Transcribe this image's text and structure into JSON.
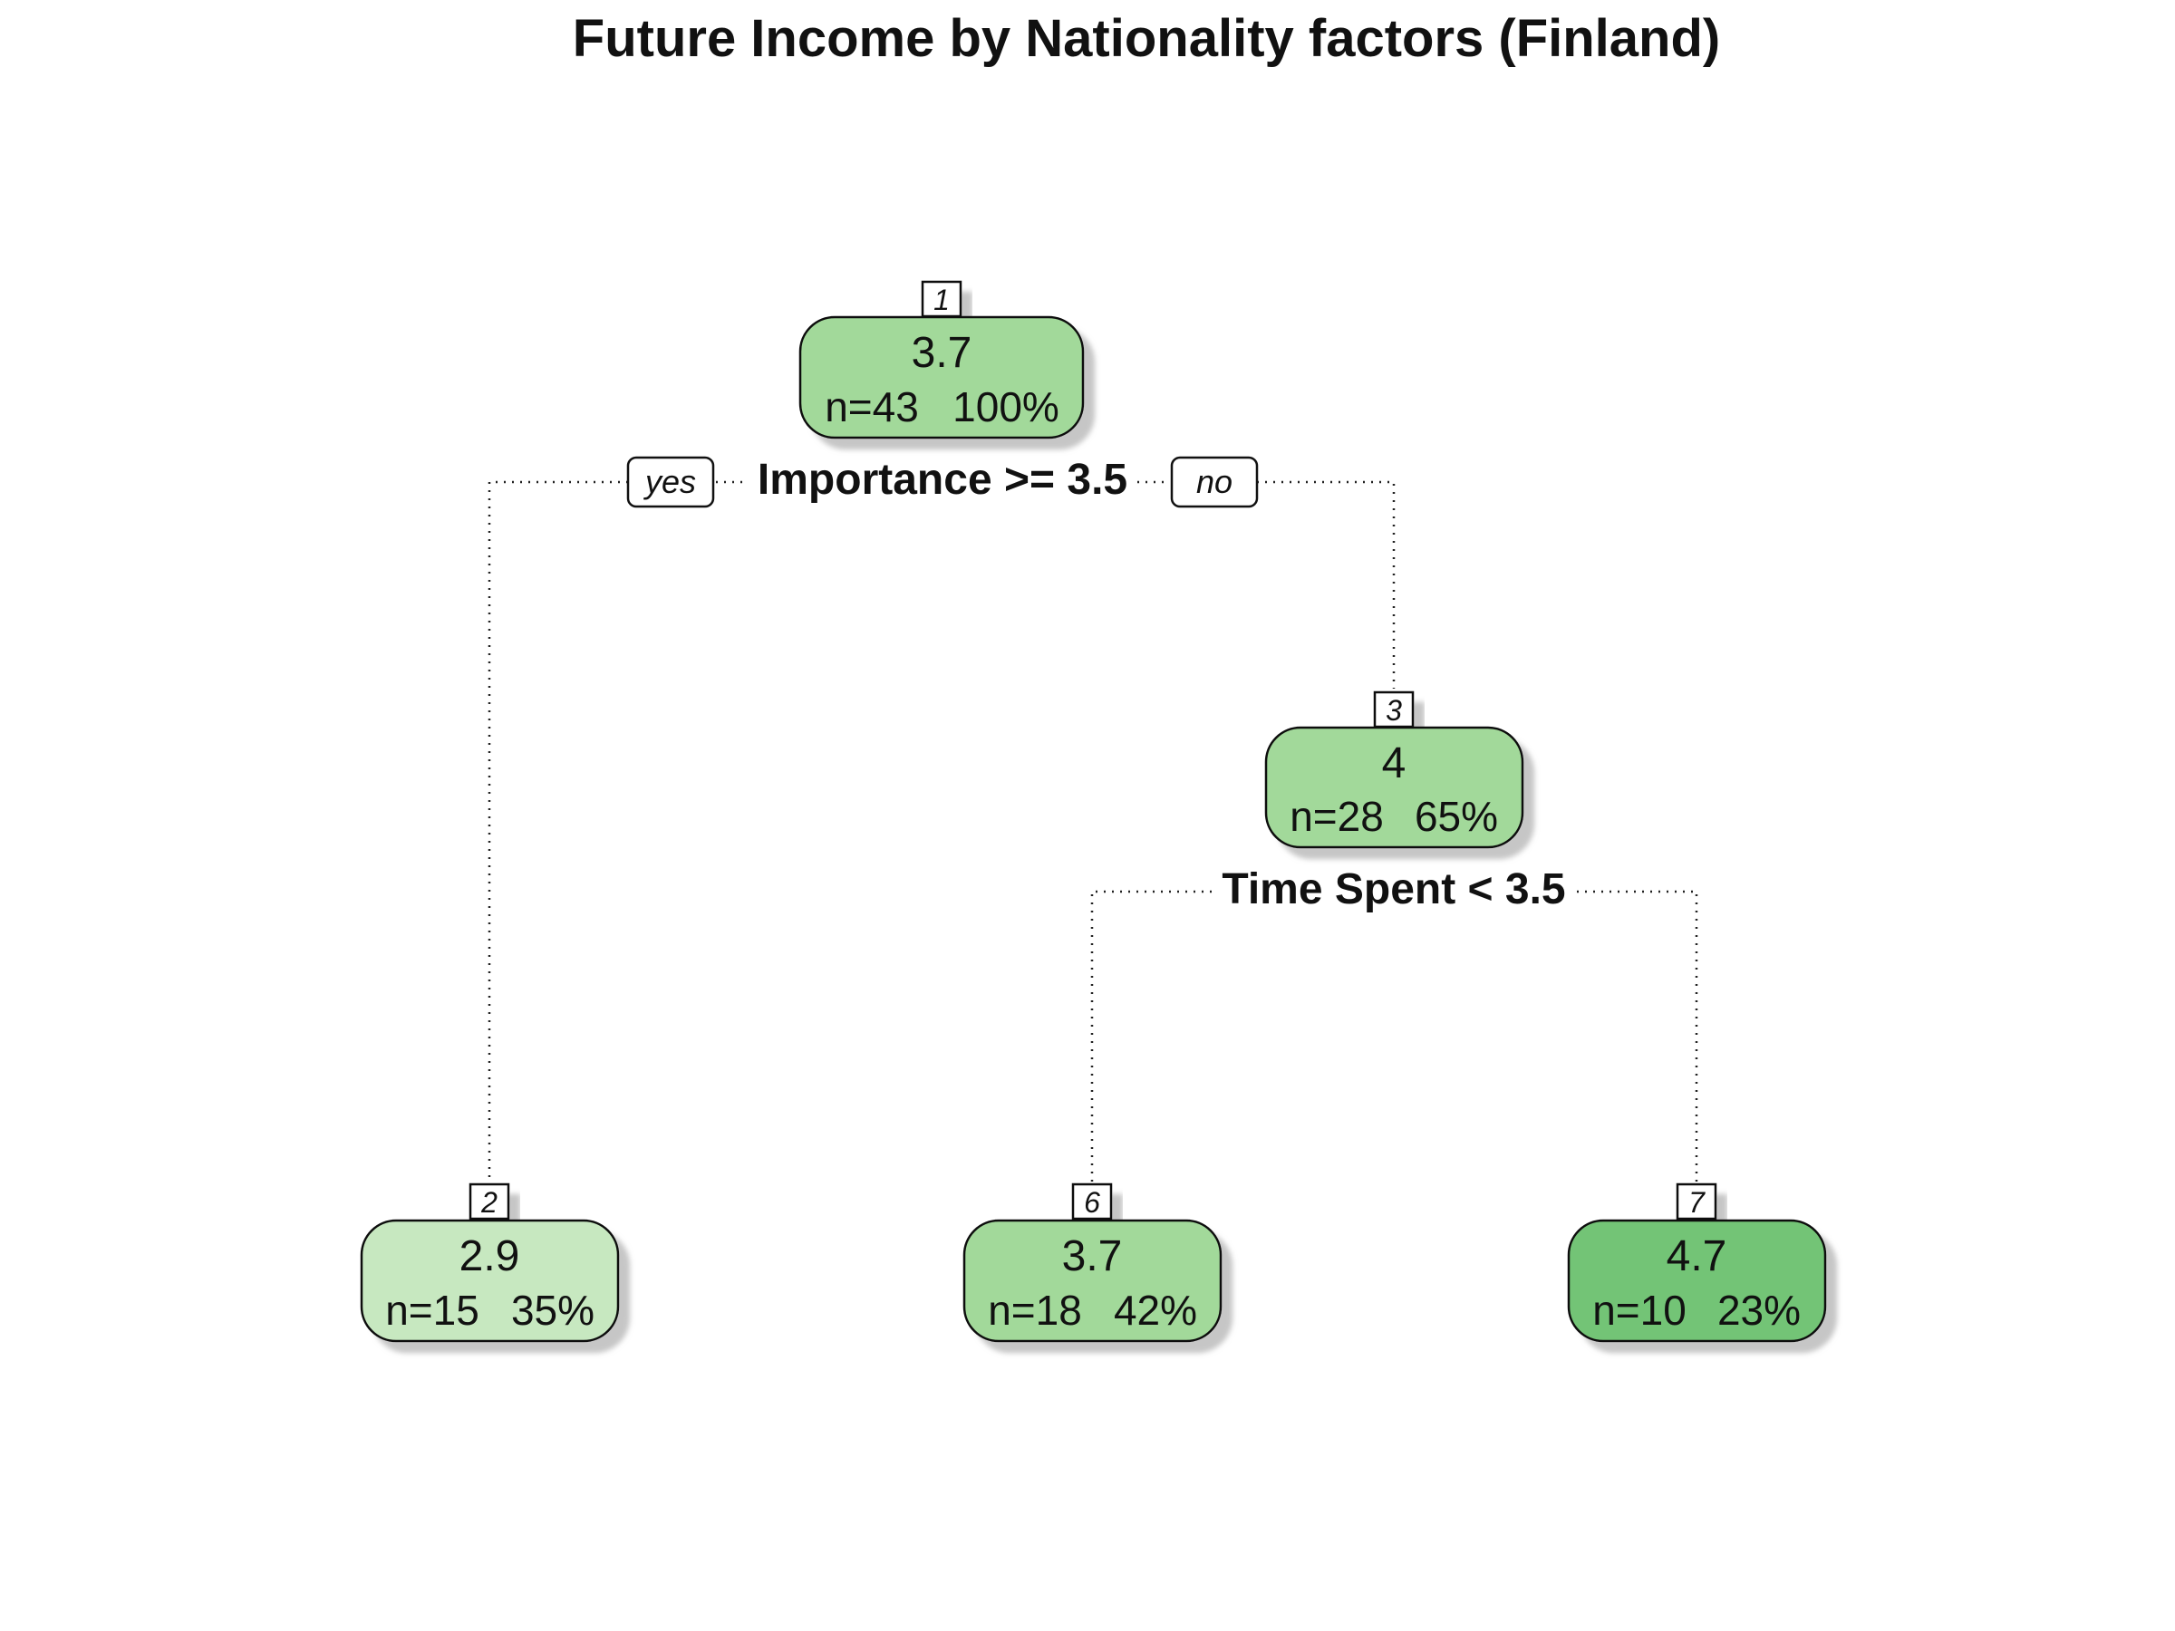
{
  "title": "Future Income by Nationality factors (Finland)",
  "tree": {
    "nodes": [
      {
        "id": "1",
        "value": "3.7",
        "n": "n=43",
        "pct": "100%",
        "color": "#a2d99a"
      },
      {
        "id": "3",
        "value": "4",
        "n": "n=28",
        "pct": "65%",
        "color": "#a2d99a"
      },
      {
        "id": "2",
        "value": "2.9",
        "n": "n=15",
        "pct": "35%",
        "color": "#c7e8c0"
      },
      {
        "id": "6",
        "value": "3.7",
        "n": "n=18",
        "pct": "42%",
        "color": "#a2d99a"
      },
      {
        "id": "7",
        "value": "4.7",
        "n": "n=10",
        "pct": "23%",
        "color": "#73c476"
      }
    ],
    "splits": [
      {
        "node": "1",
        "label": "Importance >= 3.5",
        "yes_label": "yes",
        "no_label": "no"
      },
      {
        "node": "3",
        "label": "Time Spent < 3.5"
      }
    ]
  }
}
